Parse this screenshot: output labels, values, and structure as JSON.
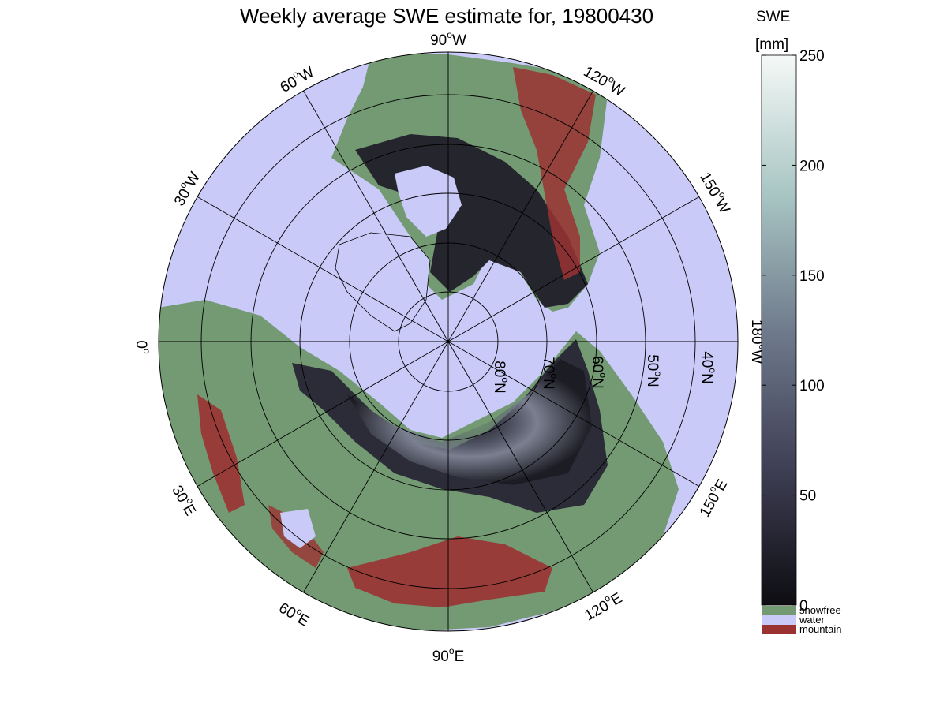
{
  "title": "Weekly average SWE estimate for, 19800430",
  "map": {
    "projection": "north polar stereographic",
    "colors": {
      "water": "#cacaf9",
      "snowfree": "#739a72",
      "mountain": "#9b3232",
      "swe_low": "#0d0d12",
      "swe_high": "#f5f9f7"
    },
    "longitude_labels": [
      {
        "text": "90",
        "suffix": "W"
      },
      {
        "text": "120",
        "suffix": "W"
      },
      {
        "text": "150",
        "suffix": "W"
      },
      {
        "text": "180",
        "suffix": "W"
      },
      {
        "text": "150",
        "suffix": "E"
      },
      {
        "text": "120",
        "suffix": "E"
      },
      {
        "text": "90",
        "suffix": "E"
      },
      {
        "text": "60",
        "suffix": "E"
      },
      {
        "text": "30",
        "suffix": "E"
      },
      {
        "text": "0",
        "suffix": ""
      },
      {
        "text": "30",
        "suffix": "W"
      },
      {
        "text": "60",
        "suffix": "W"
      }
    ],
    "latitude_labels": [
      {
        "text": "80",
        "suffix": "N"
      },
      {
        "text": "70",
        "suffix": "N"
      },
      {
        "text": "60",
        "suffix": "N"
      },
      {
        "text": "50",
        "suffix": "N"
      },
      {
        "text": "40",
        "suffix": "N"
      }
    ]
  },
  "colorbar": {
    "title": "SWE",
    "unit": "[mm]",
    "ticks": [
      "250",
      "200",
      "150",
      "100",
      "50",
      "0"
    ],
    "range": [
      0,
      250
    ],
    "categories": [
      {
        "label": "snowfree",
        "color": "#739a72"
      },
      {
        "label": "water",
        "color": "#cacaf9"
      },
      {
        "label": "mountain",
        "color": "#9b3232"
      }
    ]
  }
}
